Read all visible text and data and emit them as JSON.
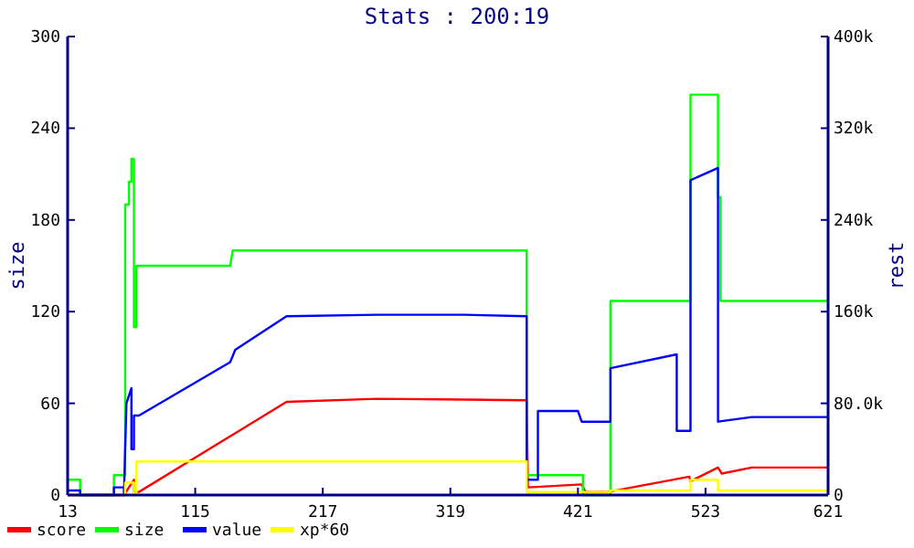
{
  "chart_data": {
    "type": "line",
    "title": "Stats : 200:19",
    "ylabel": "size",
    "y2label": "rest",
    "xlim": [
      13,
      621
    ],
    "xticks": [
      13,
      115,
      217,
      319,
      421,
      523,
      621
    ],
    "ylim": [
      0,
      300
    ],
    "yticks": [
      0,
      60,
      120,
      180,
      240,
      300
    ],
    "y2lim": [
      0,
      400000
    ],
    "y2ticks": [
      0,
      {
        "value": 80000,
        "label": "80.0k"
      },
      {
        "value": 160000,
        "label": "160k"
      },
      {
        "value": 240000,
        "label": "240k"
      },
      {
        "value": 320000,
        "label": "320k"
      },
      {
        "value": 400000,
        "label": "400k"
      }
    ],
    "grid": false,
    "legend": "bottom",
    "marker": "none",
    "line_style": "solid",
    "series": [
      {
        "name": "score",
        "color": "#ff0000",
        "axis": "y2",
        "x": [
          13,
          58,
          66,
          66,
          70,
          188,
          260,
          380,
          381,
          424,
          427,
          445,
          510,
          511,
          533,
          536,
          560,
          621
        ],
        "values": [
          0,
          0,
          13300,
          2700,
          2700,
          81300,
          84000,
          82700,
          6700,
          9300,
          2700,
          2700,
          16000,
          12000,
          24000,
          18700,
          24000,
          24000
        ]
      },
      {
        "name": "size",
        "color": "#00ff00",
        "x": [
          13,
          23,
          23,
          50,
          50,
          59,
          59,
          62,
          62,
          64,
          64,
          66,
          66,
          68,
          68,
          143,
          145,
          380,
          380,
          425,
          425,
          447,
          447,
          511,
          511,
          533,
          533,
          535,
          535,
          621
        ],
        "values": [
          10,
          10,
          0,
          0,
          13,
          13,
          190,
          190,
          205,
          205,
          220,
          220,
          110,
          110,
          150,
          150,
          160,
          160,
          13,
          13,
          0,
          0,
          127,
          127,
          262,
          262,
          195,
          195,
          127,
          127
        ]
      },
      {
        "name": "value",
        "color": "#0000ff",
        "axis": "y2",
        "x": [
          13,
          23,
          23,
          50,
          50,
          58,
          58,
          60,
          64,
          64,
          66,
          66,
          70,
          143,
          147,
          188,
          260,
          330,
          380,
          380,
          389,
          389,
          421,
          424,
          447,
          447,
          500,
          500,
          511,
          511,
          533,
          533,
          560,
          621
        ],
        "values": [
          4000,
          4000,
          0,
          0,
          6700,
          6700,
          0,
          80000,
          93300,
          40000,
          40000,
          69300,
          69300,
          116000,
          126700,
          156000,
          157300,
          157300,
          156000,
          13300,
          13300,
          73300,
          73300,
          64000,
          64000,
          110700,
          122700,
          56000,
          56000,
          274700,
          285300,
          64000,
          68000,
          68000
        ]
      },
      {
        "name": "xp*60",
        "color": "#ffff00",
        "axis": "y2",
        "x": [
          13,
          59,
          59,
          66,
          66,
          68,
          68,
          380,
          380,
          447,
          447,
          511,
          511,
          533,
          533,
          621
        ],
        "values": [
          0,
          0,
          10700,
          10700,
          0,
          0,
          29300,
          29300,
          2700,
          2700,
          4000,
          4000,
          13300,
          13300,
          4000,
          4000
        ]
      }
    ]
  }
}
